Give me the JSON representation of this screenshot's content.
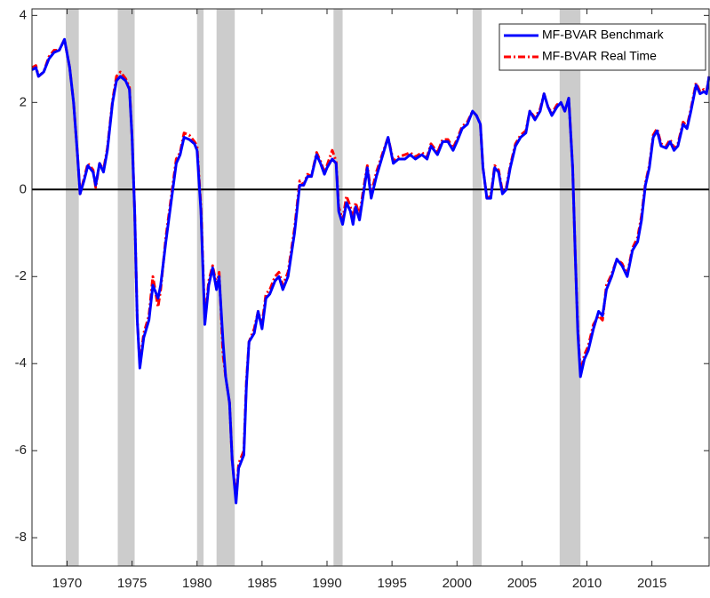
{
  "chart_data": {
    "type": "line",
    "x": [
      1967.3,
      1967.6,
      1967.8,
      1968.2,
      1968.6,
      1969.0,
      1969.4,
      1969.8,
      1970.2,
      1970.5,
      1970.8,
      1971.0,
      1971.3,
      1971.6,
      1972.0,
      1972.2,
      1972.5,
      1972.8,
      1973.1,
      1973.5,
      1973.8,
      1974.1,
      1974.5,
      1974.8,
      1975.0,
      1975.2,
      1975.4,
      1975.6,
      1975.9,
      1976.3,
      1976.6,
      1977.0,
      1977.2,
      1977.6,
      1978.0,
      1978.4,
      1978.7,
      1979.0,
      1979.4,
      1979.8,
      1980.0,
      1980.3,
      1980.6,
      1980.9,
      1981.2,
      1981.5,
      1981.7,
      1982.0,
      1982.2,
      1982.5,
      1982.7,
      1983.0,
      1983.2,
      1983.6,
      1983.8,
      1984.0,
      1984.4,
      1984.7,
      1985.0,
      1985.3,
      1985.6,
      1986.0,
      1986.3,
      1986.6,
      1987.0,
      1987.5,
      1987.9,
      1988.2,
      1988.5,
      1988.8,
      1989.2,
      1989.5,
      1989.8,
      1990.0,
      1990.4,
      1990.7,
      1990.9,
      1991.2,
      1991.5,
      1991.8,
      1992.0,
      1992.2,
      1992.5,
      1992.8,
      1993.1,
      1993.4,
      1993.8,
      1994.3,
      1994.7,
      1995.1,
      1995.5,
      1996.0,
      1996.4,
      1996.8,
      1997.3,
      1997.7,
      1998.0,
      1998.5,
      1998.9,
      1999.3,
      1999.7,
      2000.0,
      2000.4,
      2000.8,
      2001.2,
      2001.5,
      2001.8,
      2002.0,
      2002.3,
      2002.6,
      2002.9,
      2003.2,
      2003.5,
      2003.8,
      2004.1,
      2004.5,
      2004.9,
      2005.3,
      2005.6,
      2006.0,
      2006.4,
      2006.7,
      2007.0,
      2007.3,
      2007.7,
      2008.0,
      2008.3,
      2008.6,
      2008.9,
      2009.1,
      2009.3,
      2009.5,
      2009.8,
      2010.1,
      2010.5,
      2010.9,
      2011.2,
      2011.5,
      2011.9,
      2012.3,
      2012.7,
      2013.1,
      2013.5,
      2013.9,
      2014.2,
      2014.5,
      2014.8,
      2015.1,
      2015.4,
      2015.7,
      2016.1,
      2016.4,
      2016.7,
      2017.0,
      2017.4,
      2017.7,
      2018.0,
      2018.4,
      2018.7,
      2019.0,
      2019.2,
      2019.4
    ],
    "series": [
      {
        "name": "MF-BVAR Benchmark",
        "color": "#0000ff",
        "dash": "solid",
        "values": [
          2.75,
          2.8,
          2.6,
          2.7,
          3.0,
          3.15,
          3.2,
          3.45,
          2.8,
          2.0,
          0.8,
          -0.1,
          0.2,
          0.55,
          0.4,
          0.1,
          0.6,
          0.4,
          0.9,
          2.0,
          2.5,
          2.6,
          2.5,
          2.3,
          1.2,
          -0.5,
          -3.0,
          -4.1,
          -3.4,
          -3.0,
          -2.2,
          -2.5,
          -2.2,
          -1.2,
          -0.3,
          0.6,
          0.8,
          1.2,
          1.15,
          1.05,
          0.9,
          -0.5,
          -3.1,
          -2.2,
          -1.8,
          -2.3,
          -2.0,
          -3.5,
          -4.3,
          -4.9,
          -6.2,
          -7.2,
          -6.4,
          -6.1,
          -4.5,
          -3.5,
          -3.3,
          -2.8,
          -3.2,
          -2.5,
          -2.4,
          -2.1,
          -2.0,
          -2.3,
          -2.0,
          -1.0,
          0.1,
          0.1,
          0.3,
          0.3,
          0.8,
          0.6,
          0.35,
          0.5,
          0.7,
          0.6,
          -0.5,
          -0.8,
          -0.3,
          -0.5,
          -0.8,
          -0.4,
          -0.7,
          -0.1,
          0.5,
          -0.2,
          0.3,
          0.8,
          1.2,
          0.6,
          0.7,
          0.7,
          0.8,
          0.7,
          0.8,
          0.7,
          1.0,
          0.8,
          1.1,
          1.1,
          0.9,
          1.1,
          1.4,
          1.5,
          1.8,
          1.7,
          1.5,
          0.5,
          -0.2,
          -0.2,
          0.5,
          0.4,
          -0.1,
          0.0,
          0.5,
          1.0,
          1.2,
          1.3,
          1.8,
          1.6,
          1.8,
          2.2,
          1.9,
          1.7,
          1.9,
          2.0,
          1.8,
          2.1,
          0.5,
          -1.5,
          -3.3,
          -4.3,
          -3.9,
          -3.7,
          -3.2,
          -2.8,
          -2.9,
          -2.3,
          -2.0,
          -1.6,
          -1.75,
          -2.0,
          -1.4,
          -1.2,
          -0.7,
          0.1,
          0.5,
          1.2,
          1.35,
          1.0,
          0.95,
          1.1,
          0.9,
          1.0,
          1.5,
          1.4,
          1.8,
          2.4,
          2.2,
          2.25,
          2.2,
          2.6
        ]
      },
      {
        "name": "MF-BVAR Real Time",
        "color": "#ff0000",
        "dash": "dashdot",
        "values": [
          2.8,
          2.85,
          2.6,
          2.7,
          3.05,
          3.2,
          3.2,
          3.45,
          2.8,
          2.0,
          0.8,
          -0.1,
          0.25,
          0.6,
          0.45,
          0.05,
          0.6,
          0.45,
          0.95,
          2.05,
          2.6,
          2.7,
          2.55,
          2.35,
          1.2,
          -0.5,
          -3.0,
          -4.0,
          -3.3,
          -2.9,
          -2.0,
          -2.7,
          -2.3,
          -1.1,
          -0.2,
          0.7,
          0.85,
          1.3,
          1.25,
          1.1,
          1.0,
          -0.4,
          -3.0,
          -2.1,
          -1.75,
          -2.2,
          -1.9,
          -3.8,
          -4.3,
          -4.9,
          -6.2,
          -7.1,
          -6.3,
          -6.0,
          -4.4,
          -3.5,
          -3.2,
          -2.8,
          -3.1,
          -2.4,
          -2.3,
          -2.0,
          -1.9,
          -2.2,
          -1.9,
          -0.9,
          0.2,
          0.1,
          0.35,
          0.3,
          0.85,
          0.65,
          0.4,
          0.55,
          0.9,
          0.65,
          -0.4,
          -0.7,
          -0.15,
          -0.4,
          -0.7,
          -0.3,
          -0.6,
          0.0,
          0.55,
          -0.1,
          0.4,
          0.85,
          1.2,
          0.65,
          0.75,
          0.8,
          0.85,
          0.75,
          0.85,
          0.75,
          1.05,
          0.85,
          1.15,
          1.15,
          0.95,
          1.15,
          1.45,
          1.55,
          1.8,
          1.7,
          1.5,
          0.5,
          -0.2,
          -0.15,
          0.55,
          0.45,
          -0.05,
          0.05,
          0.55,
          1.05,
          1.25,
          1.35,
          1.8,
          1.65,
          1.85,
          2.2,
          1.9,
          1.75,
          1.95,
          2.0,
          1.8,
          2.1,
          0.5,
          -1.5,
          -3.2,
          -4.2,
          -3.8,
          -3.6,
          -3.1,
          -2.9,
          -3.0,
          -2.2,
          -1.95,
          -1.6,
          -1.7,
          -1.95,
          -1.35,
          -1.1,
          -0.6,
          0.15,
          0.55,
          1.25,
          1.4,
          1.05,
          1.0,
          1.15,
          0.95,
          1.05,
          1.55,
          1.45,
          1.85,
          2.45,
          2.25,
          2.3,
          2.25,
          2.6
        ]
      }
    ],
    "recessions": [
      [
        1969.9,
        1970.9
      ],
      [
        1973.9,
        1975.2
      ],
      [
        1980.0,
        1980.5
      ],
      [
        1981.5,
        1982.9
      ],
      [
        1990.5,
        1991.2
      ],
      [
        2001.2,
        2001.9
      ],
      [
        2007.9,
        2009.5
      ]
    ],
    "recession_color": "#cccccc",
    "hline": 0,
    "xlim": [
      1967.3,
      2019.4
    ],
    "ylim": [
      -8.65,
      4.15
    ],
    "xticks": [
      1970,
      1975,
      1980,
      1985,
      1990,
      1995,
      2000,
      2005,
      2010,
      2015
    ],
    "yticks": [
      -8,
      -6,
      -4,
      -2,
      0,
      2,
      4
    ],
    "legend": "top-right"
  }
}
